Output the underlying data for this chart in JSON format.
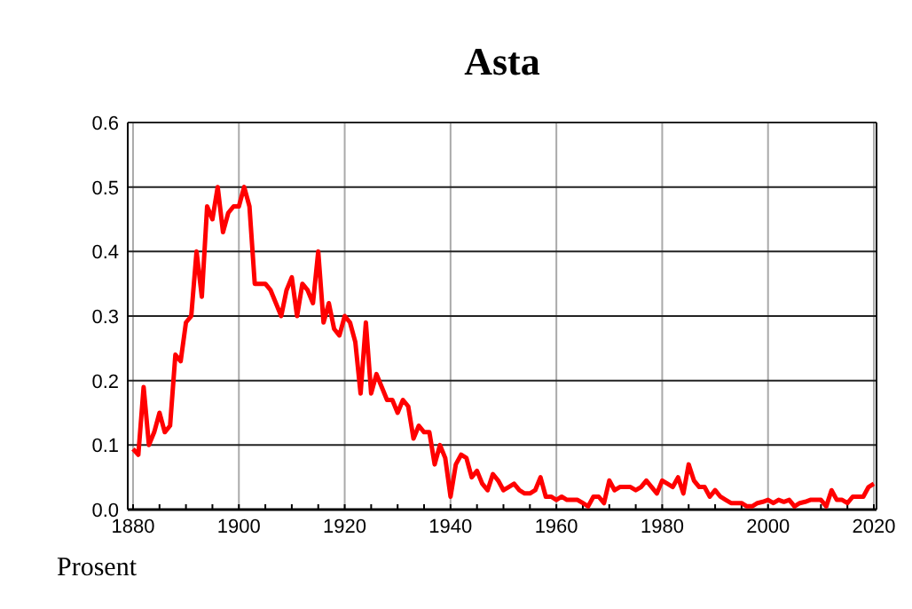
{
  "chart_data": {
    "type": "line",
    "title": "Asta",
    "annotations": [
      "Prosent"
    ],
    "x": [
      1880,
      1881,
      1882,
      1883,
      1884,
      1885,
      1886,
      1887,
      1888,
      1889,
      1890,
      1891,
      1892,
      1893,
      1894,
      1895,
      1896,
      1897,
      1898,
      1899,
      1900,
      1901,
      1902,
      1903,
      1904,
      1905,
      1906,
      1907,
      1908,
      1909,
      1910,
      1911,
      1912,
      1913,
      1914,
      1915,
      1916,
      1917,
      1918,
      1919,
      1920,
      1921,
      1922,
      1923,
      1924,
      1925,
      1926,
      1927,
      1928,
      1929,
      1930,
      1931,
      1932,
      1933,
      1934,
      1935,
      1936,
      1937,
      1938,
      1939,
      1940,
      1941,
      1942,
      1943,
      1944,
      1945,
      1946,
      1947,
      1948,
      1949,
      1950,
      1951,
      1952,
      1953,
      1954,
      1955,
      1956,
      1957,
      1958,
      1959,
      1960,
      1961,
      1962,
      1963,
      1964,
      1965,
      1966,
      1967,
      1968,
      1969,
      1970,
      1971,
      1972,
      1973,
      1974,
      1975,
      1976,
      1977,
      1978,
      1979,
      1980,
      1981,
      1982,
      1983,
      1984,
      1985,
      1986,
      1987,
      1988,
      1989,
      1990,
      1991,
      1992,
      1993,
      1994,
      1995,
      1996,
      1997,
      1998,
      1999,
      2000,
      2001,
      2002,
      2003,
      2004,
      2005,
      2006,
      2007,
      2008,
      2009,
      2010,
      2011,
      2012,
      2013,
      2014,
      2015,
      2016,
      2017,
      2018,
      2019,
      2020
    ],
    "series": [
      {
        "color": "#ff0000",
        "values": [
          0.094,
          0.085,
          0.19,
          0.1,
          0.12,
          0.15,
          0.12,
          0.13,
          0.24,
          0.23,
          0.29,
          0.3,
          0.4,
          0.33,
          0.47,
          0.45,
          0.5,
          0.43,
          0.46,
          0.47,
          0.47,
          0.5,
          0.47,
          0.35,
          0.35,
          0.35,
          0.34,
          0.32,
          0.3,
          0.34,
          0.36,
          0.3,
          0.35,
          0.34,
          0.32,
          0.4,
          0.29,
          0.32,
          0.28,
          0.27,
          0.3,
          0.29,
          0.26,
          0.18,
          0.29,
          0.18,
          0.21,
          0.19,
          0.17,
          0.17,
          0.15,
          0.17,
          0.16,
          0.11,
          0.13,
          0.12,
          0.12,
          0.07,
          0.1,
          0.08,
          0.02,
          0.07,
          0.085,
          0.08,
          0.05,
          0.06,
          0.04,
          0.03,
          0.055,
          0.045,
          0.03,
          0.035,
          0.04,
          0.03,
          0.025,
          0.025,
          0.03,
          0.05,
          0.02,
          0.02,
          0.015,
          0.02,
          0.015,
          0.015,
          0.015,
          0.01,
          0.005,
          0.02,
          0.02,
          0.01,
          0.045,
          0.03,
          0.035,
          0.035,
          0.035,
          0.03,
          0.035,
          0.045,
          0.035,
          0.025,
          0.045,
          0.04,
          0.035,
          0.05,
          0.025,
          0.07,
          0.045,
          0.035,
          0.035,
          0.02,
          0.03,
          0.02,
          0.015,
          0.01,
          0.01,
          0.01,
          0.005,
          0.005,
          0.01,
          0.012,
          0.015,
          0.01,
          0.015,
          0.012,
          0.015,
          0.005,
          0.01,
          0.012,
          0.015,
          0.015,
          0.015,
          0.005,
          0.03,
          0.015,
          0.015,
          0.01,
          0.02,
          0.02,
          0.02,
          0.035,
          0.04
        ]
      }
    ],
    "xlim": [
      1879,
      2020.5
    ],
    "xticks": [
      1880,
      1900,
      1920,
      1940,
      1960,
      1980,
      2000,
      2020
    ],
    "ylim": [
      0,
      0.6
    ],
    "yticks": [
      {
        "value": 0,
        "label": "0.0"
      },
      {
        "value": 0.1,
        "label": "0.1"
      },
      {
        "value": 0.2,
        "label": "0.2"
      },
      {
        "value": 0.3,
        "label": "0.3"
      },
      {
        "value": 0.4,
        "label": "0.4"
      },
      {
        "value": 0.5,
        "label": "0.5"
      },
      {
        "value": 0.6,
        "label": "0.6"
      }
    ],
    "grid": true,
    "marker": "none",
    "line_style": "solid"
  }
}
